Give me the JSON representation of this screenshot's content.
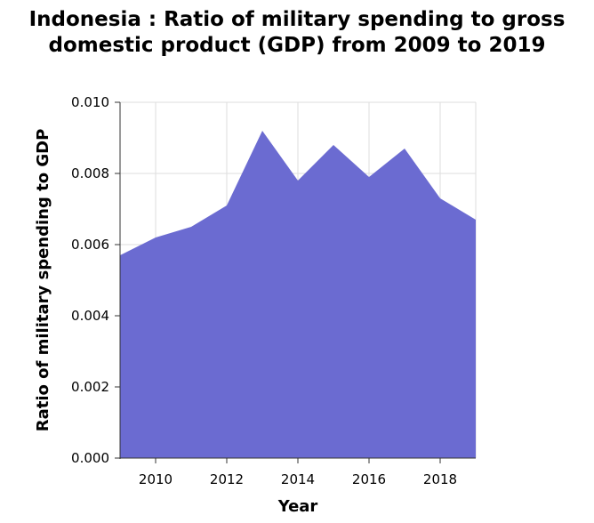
{
  "chart_data": {
    "type": "area",
    "title": "Indonesia : Ratio of military spending to gross domestic product (GDP) from 2009 to 2019",
    "xlabel": "Year",
    "ylabel": "Ratio of military spending to GDP",
    "xlim": [
      2009,
      2019
    ],
    "ylim": [
      0,
      0.01
    ],
    "x_ticks": [
      "2010",
      "2012",
      "2014",
      "2016",
      "2018"
    ],
    "y_ticks": [
      "0.000",
      "0.002",
      "0.004",
      "0.006",
      "0.008",
      "0.010"
    ],
    "grid": true,
    "x": [
      2009,
      2010,
      2011,
      2012,
      2013,
      2014,
      2015,
      2016,
      2017,
      2018,
      2019
    ],
    "series": [
      {
        "values": [
          0.0057,
          0.0062,
          0.0065,
          0.0071,
          0.0092,
          0.0078,
          0.0088,
          0.0079,
          0.0087,
          0.0073,
          0.0067
        ]
      }
    ],
    "colors": {
      "fill": "#6b6bd1",
      "grid": "#dddddd",
      "axis": "#333333"
    }
  }
}
